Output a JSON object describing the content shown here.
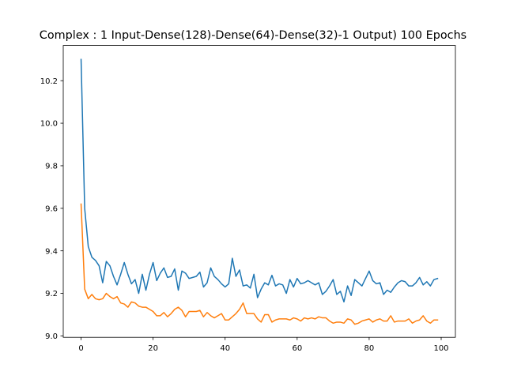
{
  "chart_data": {
    "type": "line",
    "title": "Complex : 1 Input-Dense(128)-Dense(64)-Dense(32)-1 Output)  100 Epochs",
    "xlabel": "",
    "ylabel": "",
    "xlim": [
      -4.95,
      103.95
    ],
    "ylim": [
      8.9935,
      10.3655
    ],
    "grid": false,
    "x_ticks": [
      0,
      20,
      40,
      60,
      80,
      100
    ],
    "x_tick_labels": [
      "0",
      "20",
      "40",
      "60",
      "80",
      "100"
    ],
    "y_ticks": [
      9.0,
      9.2,
      9.4,
      9.6,
      9.8,
      10.0,
      10.2
    ],
    "y_tick_labels": [
      "9.0",
      "9.2",
      "9.4",
      "9.6",
      "9.8",
      "10.0",
      "10.2"
    ],
    "colors": [
      "#1f77b4",
      "#ff7f0e"
    ],
    "x": [
      0,
      1,
      2,
      3,
      4,
      5,
      6,
      7,
      8,
      9,
      10,
      11,
      12,
      13,
      14,
      15,
      16,
      17,
      18,
      19,
      20,
      21,
      22,
      23,
      24,
      25,
      26,
      27,
      28,
      29,
      30,
      31,
      32,
      33,
      34,
      35,
      36,
      37,
      38,
      39,
      40,
      41,
      42,
      43,
      44,
      45,
      46,
      47,
      48,
      49,
      50,
      51,
      52,
      53,
      54,
      55,
      56,
      57,
      58,
      59,
      60,
      61,
      62,
      63,
      64,
      65,
      66,
      67,
      68,
      69,
      70,
      71,
      72,
      73,
      74,
      75,
      76,
      77,
      78,
      79,
      80,
      81,
      82,
      83,
      84,
      85,
      86,
      87,
      88,
      89,
      90,
      91,
      92,
      93,
      94,
      95,
      96,
      97,
      98,
      99
    ],
    "series": [
      {
        "values": [
          10.3,
          9.6,
          9.42,
          9.37,
          9.355,
          9.33,
          9.25,
          9.35,
          9.33,
          9.28,
          9.24,
          9.29,
          9.345,
          9.29,
          9.245,
          9.265,
          9.2,
          9.29,
          9.215,
          9.29,
          9.345,
          9.26,
          9.295,
          9.32,
          9.275,
          9.28,
          9.315,
          9.215,
          9.305,
          9.295,
          9.27,
          9.275,
          9.28,
          9.3,
          9.23,
          9.25,
          9.32,
          9.28,
          9.265,
          9.245,
          9.23,
          9.245,
          9.365,
          9.28,
          9.31,
          9.235,
          9.24,
          9.225,
          9.29,
          9.18,
          9.22,
          9.25,
          9.24,
          9.285,
          9.235,
          9.245,
          9.24,
          9.2,
          9.265,
          9.23,
          9.27,
          9.245,
          9.25,
          9.26,
          9.25,
          9.24,
          9.25,
          9.195,
          9.21,
          9.235,
          9.265,
          9.195,
          9.21,
          9.16,
          9.235,
          9.19,
          9.265,
          9.25,
          9.235,
          9.27,
          9.305,
          9.26,
          9.245,
          9.25,
          9.195,
          9.215,
          9.205,
          9.23,
          9.25,
          9.26,
          9.255,
          9.235,
          9.235,
          9.25,
          9.275,
          9.24,
          9.255,
          9.235,
          9.265,
          9.27
        ]
      },
      {
        "values": [
          9.62,
          9.22,
          9.175,
          9.195,
          9.175,
          9.17,
          9.175,
          9.2,
          9.185,
          9.175,
          9.185,
          9.155,
          9.15,
          9.135,
          9.16,
          9.155,
          9.14,
          9.135,
          9.135,
          9.125,
          9.115,
          9.095,
          9.095,
          9.11,
          9.09,
          9.105,
          9.125,
          9.135,
          9.12,
          9.09,
          9.115,
          9.115,
          9.115,
          9.12,
          9.09,
          9.11,
          9.095,
          9.085,
          9.095,
          9.105,
          9.075,
          9.075,
          9.09,
          9.105,
          9.125,
          9.155,
          9.105,
          9.105,
          9.105,
          9.08,
          9.065,
          9.1,
          9.1,
          9.065,
          9.075,
          9.08,
          9.08,
          9.08,
          9.075,
          9.085,
          9.08,
          9.07,
          9.085,
          9.08,
          9.085,
          9.08,
          9.09,
          9.085,
          9.085,
          9.07,
          9.06,
          9.065,
          9.065,
          9.06,
          9.08,
          9.075,
          9.055,
          9.06,
          9.07,
          9.075,
          9.08,
          9.065,
          9.075,
          9.08,
          9.07,
          9.07,
          9.095,
          9.065,
          9.07,
          9.07,
          9.07,
          9.08,
          9.06,
          9.07,
          9.075,
          9.095,
          9.07,
          9.06,
          9.075,
          9.075
        ]
      }
    ]
  }
}
